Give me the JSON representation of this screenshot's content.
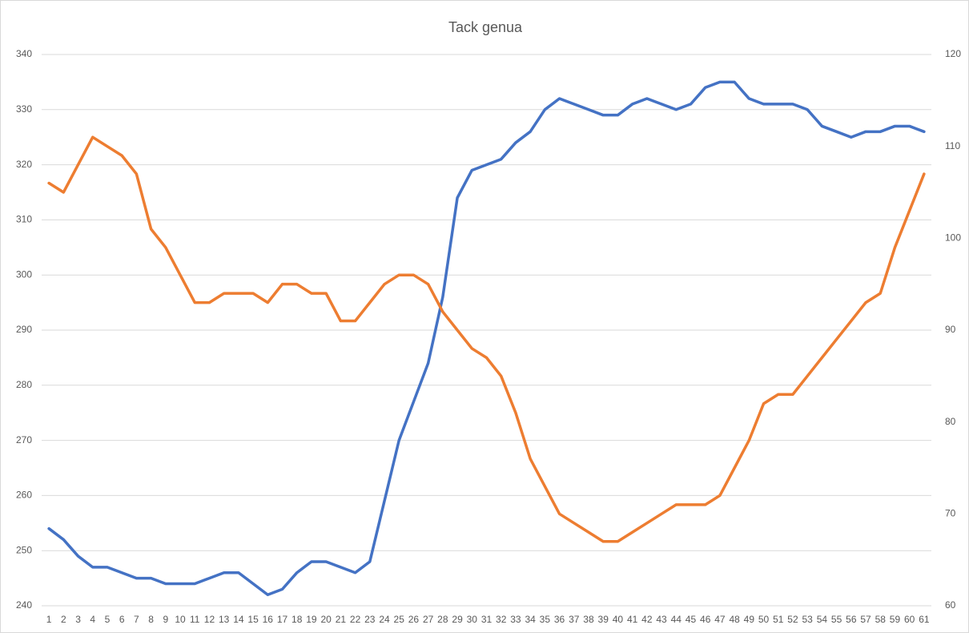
{
  "chart_data": {
    "type": "line",
    "title": "Tack genua",
    "categories": [
      1,
      2,
      3,
      4,
      5,
      6,
      7,
      8,
      9,
      10,
      11,
      12,
      13,
      14,
      15,
      16,
      17,
      18,
      19,
      20,
      21,
      22,
      23,
      24,
      25,
      26,
      27,
      28,
      29,
      30,
      31,
      32,
      33,
      34,
      35,
      36,
      37,
      38,
      39,
      40,
      41,
      42,
      43,
      44,
      45,
      46,
      47,
      48,
      49,
      50,
      51,
      52,
      53,
      54,
      55,
      56,
      57,
      58,
      59,
      60,
      61
    ],
    "series": [
      {
        "color": "#4472c4",
        "axis": "y",
        "values": [
          254,
          252,
          249,
          247,
          247,
          246,
          245,
          245,
          244,
          244,
          244,
          245,
          246,
          246,
          244,
          242,
          243,
          246,
          248,
          248,
          247,
          246,
          248,
          259,
          270,
          277,
          284,
          296,
          314,
          319,
          320,
          321,
          324,
          326,
          330,
          332,
          331,
          330,
          329,
          329,
          331,
          332,
          331,
          330,
          331,
          334,
          335,
          335,
          332,
          331,
          331,
          331,
          330,
          327,
          326,
          325,
          326,
          326,
          327,
          327,
          326
        ]
      },
      {
        "color": "#ed7d31",
        "axis": "y2",
        "values": [
          106,
          105,
          108,
          111,
          110,
          109,
          107,
          101,
          99,
          96,
          93,
          93,
          94,
          94,
          94,
          93,
          95,
          95,
          94,
          94,
          91,
          91,
          93,
          95,
          96,
          96,
          95,
          92,
          90,
          88,
          87,
          85,
          81,
          76,
          73,
          70,
          69,
          68,
          67,
          67,
          68,
          69,
          70,
          71,
          71,
          71,
          72,
          75,
          78,
          82,
          83,
          83,
          85,
          87,
          89,
          91,
          93,
          94,
          99,
          103,
          107
        ]
      }
    ],
    "ylim": [
      240,
      340
    ],
    "yticks": [
      240,
      250,
      260,
      270,
      280,
      290,
      300,
      310,
      320,
      330,
      340
    ],
    "y2lim": [
      60,
      120
    ],
    "y2ticks": [
      60,
      70,
      80,
      90,
      100,
      110,
      120
    ],
    "grid": true
  }
}
